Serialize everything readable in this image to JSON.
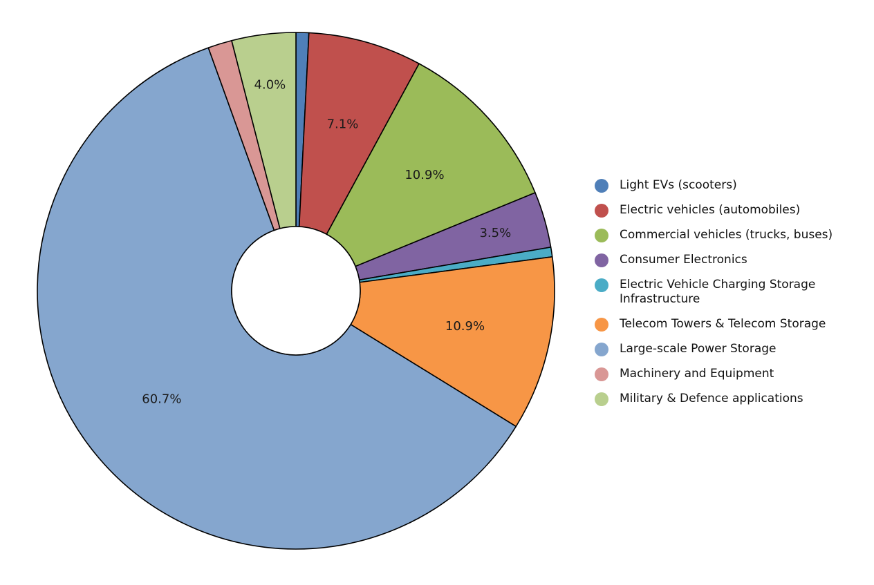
{
  "chart_data": {
    "type": "pie",
    "donut": true,
    "start_angle_deg": 0,
    "direction": "clockwise",
    "legend_position": "right",
    "slices": [
      {
        "name": "Light EVs (scooters)",
        "value": 0.8,
        "label": "",
        "color": "#4f7fb8"
      },
      {
        "name": "Electric vehicles (automobiles)",
        "value": 7.1,
        "label": "7.1%",
        "color": "#c0504d"
      },
      {
        "name": "Commercial vehicles (trucks, buses)",
        "value": 10.9,
        "label": "10.9%",
        "color": "#9bbb59"
      },
      {
        "name": "Consumer Electronics",
        "value": 3.5,
        "label": "3.5%",
        "color": "#8064a2"
      },
      {
        "name": "Electric Vehicle Charging Storage Infrastructure",
        "value": 0.6,
        "label": "",
        "color": "#4bacc6"
      },
      {
        "name": "Telecom Towers & Telecom Storage",
        "value": 10.9,
        "label": "10.9%",
        "color": "#f79646"
      },
      {
        "name": "Large-scale Power Storage",
        "value": 60.7,
        "label": "60.7%",
        "color": "#85a6ce"
      },
      {
        "name": "Machinery and Equipment",
        "value": 1.5,
        "label": "",
        "color": "#d99795"
      },
      {
        "name": "Military & Defence applications",
        "value": 4.0,
        "label": "4.0%",
        "color": "#b9cf8e"
      }
    ]
  }
}
